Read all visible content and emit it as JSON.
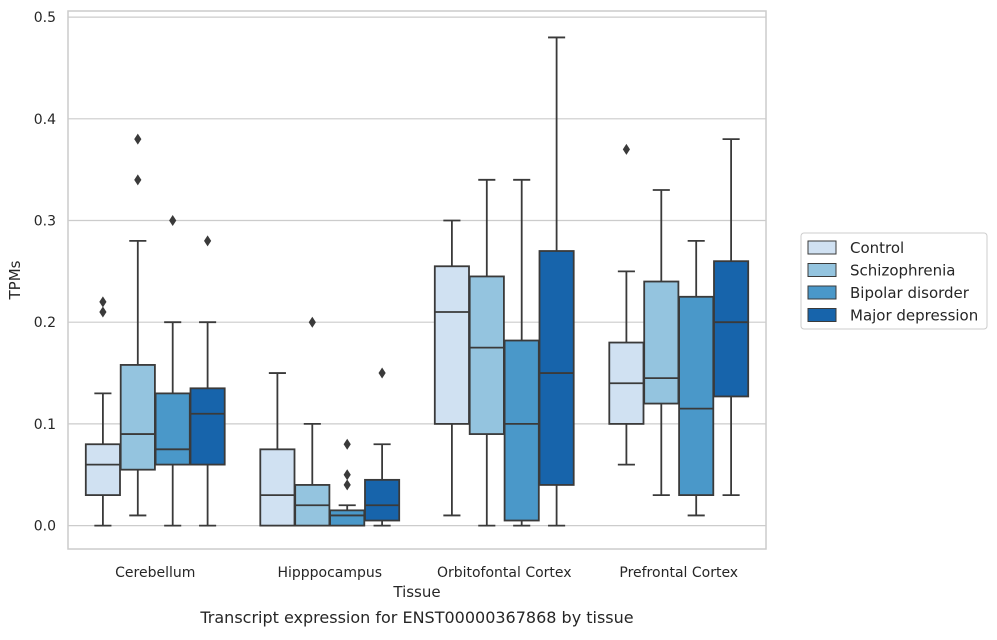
{
  "chart_data": {
    "type": "boxplot",
    "title": "",
    "caption": "Transcript expression for ENST00000367868 by tissue",
    "xlabel": "Tissue",
    "ylabel": "TPMs",
    "ylim": [
      -0.023,
      0.506
    ],
    "yticks": [
      0.0,
      0.1,
      0.2,
      0.3,
      0.4,
      0.5
    ],
    "ytick_labels": [
      "0.0",
      "0.1",
      "0.2",
      "0.3",
      "0.4",
      "0.5"
    ],
    "grid": "horizontal",
    "legend_position": "right",
    "categories": [
      "Cerebellum",
      "Hipppocampus",
      "Orbitofontal Cortex",
      "Prefrontal Cortex"
    ],
    "series": [
      {
        "name": "Control",
        "color": "#d0e1f2",
        "boxes": [
          {
            "whislo": 0.0,
            "q1": 0.03,
            "med": 0.06,
            "q3": 0.08,
            "whishi": 0.13,
            "fliers": [
              0.21,
              0.22
            ]
          },
          {
            "whislo": 0.0,
            "q1": 0.0,
            "med": 0.03,
            "q3": 0.075,
            "whishi": 0.15,
            "fliers": []
          },
          {
            "whislo": 0.01,
            "q1": 0.1,
            "med": 0.21,
            "q3": 0.255,
            "whishi": 0.3,
            "fliers": []
          },
          {
            "whislo": 0.06,
            "q1": 0.1,
            "med": 0.14,
            "q3": 0.18,
            "whishi": 0.25,
            "fliers": [
              0.37
            ]
          }
        ]
      },
      {
        "name": "Schizophrenia",
        "color": "#94c4df",
        "boxes": [
          {
            "whislo": 0.01,
            "q1": 0.055,
            "med": 0.09,
            "q3": 0.158,
            "whishi": 0.28,
            "fliers": [
              0.34,
              0.38
            ]
          },
          {
            "whislo": 0.0,
            "q1": 0.0,
            "med": 0.02,
            "q3": 0.04,
            "whishi": 0.1,
            "fliers": [
              0.2
            ]
          },
          {
            "whislo": 0.0,
            "q1": 0.09,
            "med": 0.175,
            "q3": 0.245,
            "whishi": 0.34,
            "fliers": []
          },
          {
            "whislo": 0.03,
            "q1": 0.12,
            "med": 0.145,
            "q3": 0.24,
            "whishi": 0.33,
            "fliers": []
          }
        ]
      },
      {
        "name": "Bipolar disorder",
        "color": "#4a98c9",
        "boxes": [
          {
            "whislo": 0.0,
            "q1": 0.06,
            "med": 0.075,
            "q3": 0.13,
            "whishi": 0.2,
            "fliers": [
              0.3
            ]
          },
          {
            "whislo": 0.0,
            "q1": 0.0,
            "med": 0.01,
            "q3": 0.015,
            "whishi": 0.02,
            "fliers": [
              0.04,
              0.05,
              0.08
            ]
          },
          {
            "whislo": 0.0,
            "q1": 0.005,
            "med": 0.1,
            "q3": 0.182,
            "whishi": 0.34,
            "fliers": []
          },
          {
            "whislo": 0.01,
            "q1": 0.03,
            "med": 0.115,
            "q3": 0.225,
            "whishi": 0.28,
            "fliers": []
          }
        ]
      },
      {
        "name": "Major depression",
        "color": "#1764ab",
        "boxes": [
          {
            "whislo": 0.0,
            "q1": 0.06,
            "med": 0.11,
            "q3": 0.135,
            "whishi": 0.2,
            "fliers": [
              0.28
            ]
          },
          {
            "whislo": 0.0,
            "q1": 0.005,
            "med": 0.02,
            "q3": 0.045,
            "whishi": 0.08,
            "fliers": [
              0.15
            ]
          },
          {
            "whislo": 0.0,
            "q1": 0.04,
            "med": 0.15,
            "q3": 0.27,
            "whishi": 0.48,
            "fliers": []
          },
          {
            "whislo": 0.03,
            "q1": 0.127,
            "med": 0.2,
            "q3": 0.26,
            "whishi": 0.38,
            "fliers": []
          }
        ]
      }
    ]
  }
}
